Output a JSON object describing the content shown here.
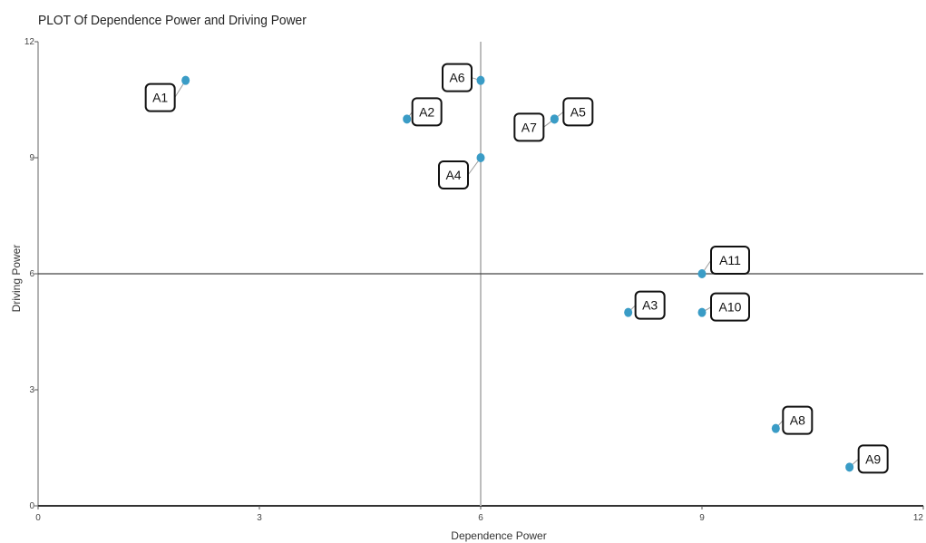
{
  "chart_data": {
    "type": "scatter",
    "title": "PLOT Of Dependence Power and Driving Power",
    "xlabel": "Dependence Power",
    "ylabel": "Driving Power",
    "xlim": [
      0,
      12
    ],
    "ylim": [
      0,
      12
    ],
    "xticks": [
      "0",
      "3",
      "6",
      "9",
      "12"
    ],
    "yticks": [
      "0",
      "3",
      "6",
      "9",
      "12"
    ],
    "quadrant_lines": {
      "x": 6,
      "y": 6
    },
    "point_color": "#3a9cc6",
    "points": [
      {
        "label": "A1",
        "x": 2,
        "y": 11
      },
      {
        "label": "A2",
        "x": 5,
        "y": 10
      },
      {
        "label": "A3",
        "x": 8,
        "y": 5
      },
      {
        "label": "A4",
        "x": 6,
        "y": 9
      },
      {
        "label": "A5",
        "x": 7,
        "y": 10
      },
      {
        "label": "A6",
        "x": 6,
        "y": 11
      },
      {
        "label": "A7",
        "x": 7,
        "y": 10
      },
      {
        "label": "A8",
        "x": 10,
        "y": 2
      },
      {
        "label": "A9",
        "x": 11,
        "y": 1
      },
      {
        "label": "A10",
        "x": 9,
        "y": 5
      },
      {
        "label": "A11",
        "x": 9,
        "y": 6
      }
    ]
  }
}
